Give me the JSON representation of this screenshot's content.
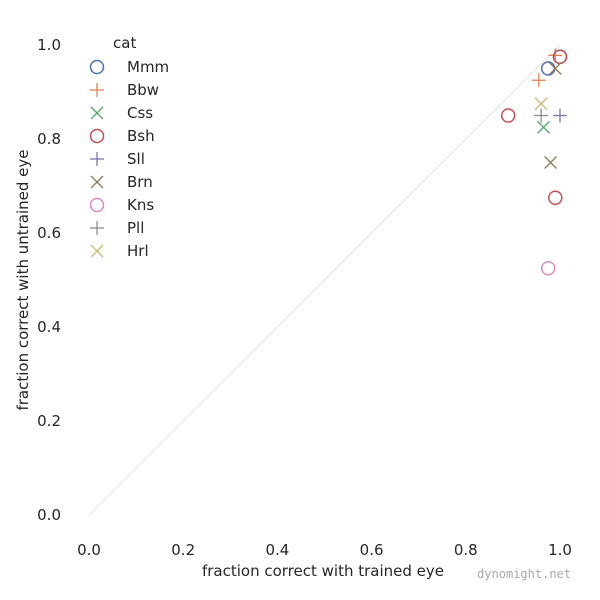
{
  "chart_data": {
    "type": "scatter",
    "xlabel": "fraction correct with trained eye",
    "ylabel": "fraction correct with untrained eye",
    "xlim": [
      0.0,
      1.0
    ],
    "ylim": [
      0.0,
      1.0
    ],
    "x_ticks": [
      "0.0",
      "0.2",
      "0.4",
      "0.6",
      "0.8",
      "1.0"
    ],
    "y_ticks": [
      "0.0",
      "0.2",
      "0.4",
      "0.6",
      "0.8",
      "1.0"
    ],
    "grid": false,
    "diagonal_reference_line": true,
    "legend": {
      "title": "cat",
      "placement": "top-left"
    },
    "series": [
      {
        "name": "Mmm",
        "marker": "circle",
        "color": "#4c72b0",
        "points": [
          [
            0.975,
            0.95
          ],
          [
            1.0,
            0.975
          ]
        ]
      },
      {
        "name": "Bbw",
        "marker": "plus",
        "color": "#dd8452",
        "points": [
          [
            0.955,
            0.925
          ],
          [
            0.99,
            0.978
          ]
        ]
      },
      {
        "name": "Css",
        "marker": "x",
        "color": "#55a868",
        "points": [
          [
            0.965,
            0.825
          ]
        ]
      },
      {
        "name": "Bsh",
        "marker": "circle",
        "color": "#c44e52",
        "points": [
          [
            0.89,
            0.85
          ],
          [
            0.99,
            0.675
          ],
          [
            1.0,
            0.975
          ]
        ]
      },
      {
        "name": "Sll",
        "marker": "plus",
        "color": "#8172b3",
        "points": [
          [
            1.0,
            0.85
          ]
        ]
      },
      {
        "name": "Brn",
        "marker": "x",
        "color": "#937860",
        "points": [
          [
            0.98,
            0.75
          ],
          [
            0.99,
            0.95
          ]
        ]
      },
      {
        "name": "Kns",
        "marker": "circle",
        "color": "#da8bc3",
        "points": [
          [
            0.975,
            0.525
          ]
        ]
      },
      {
        "name": "Pll",
        "marker": "plus",
        "color": "#8c8c8c",
        "points": [
          [
            0.96,
            0.85
          ]
        ]
      },
      {
        "name": "Hrl",
        "marker": "x",
        "color": "#ccb974",
        "points": [
          [
            0.96,
            0.875
          ]
        ]
      }
    ]
  },
  "watermark": "dynomight.net"
}
